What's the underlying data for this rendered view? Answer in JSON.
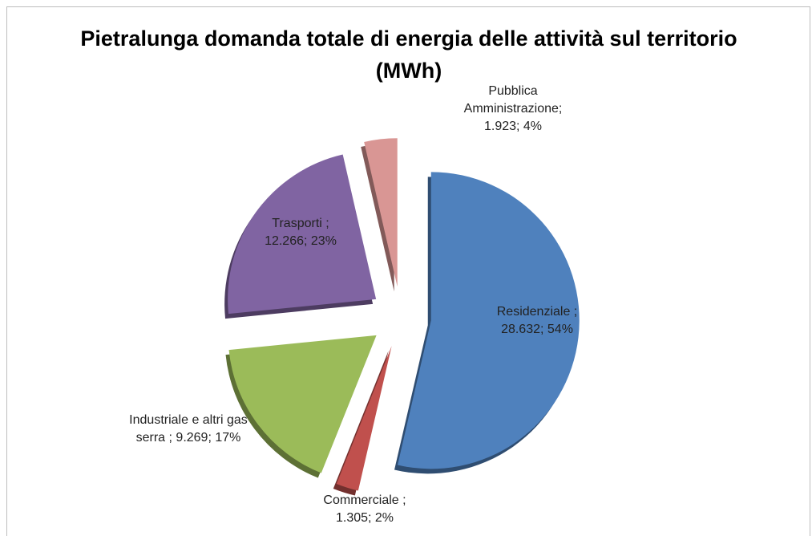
{
  "chart_data": {
    "type": "pie",
    "title": "Pietralunga domanda totale di energia delle attività sul territorio (MWh)",
    "categories": [
      "Residenziale",
      "Commerciale",
      "Industriale e altri gas serra",
      "Trasporti",
      "Pubblica Amministrazione"
    ],
    "values": [
      28632,
      1305,
      9269,
      12266,
      1923
    ],
    "data_labels": [
      [
        "Residenziale  ;",
        "28.632; 54%"
      ],
      [
        "Commerciale  ;",
        "1.305; 2%"
      ],
      [
        "Industriale e altri gas",
        "serra ; 9.269; 17%"
      ],
      [
        "Trasporti  ;",
        "12.266; 23%"
      ],
      [
        "Pubblica",
        "Amministrazione;",
        "1.923; 4%"
      ]
    ],
    "colors": [
      "#4f81bd",
      "#c0504d",
      "#9bbb59",
      "#8064a2",
      "#d99694"
    ]
  }
}
